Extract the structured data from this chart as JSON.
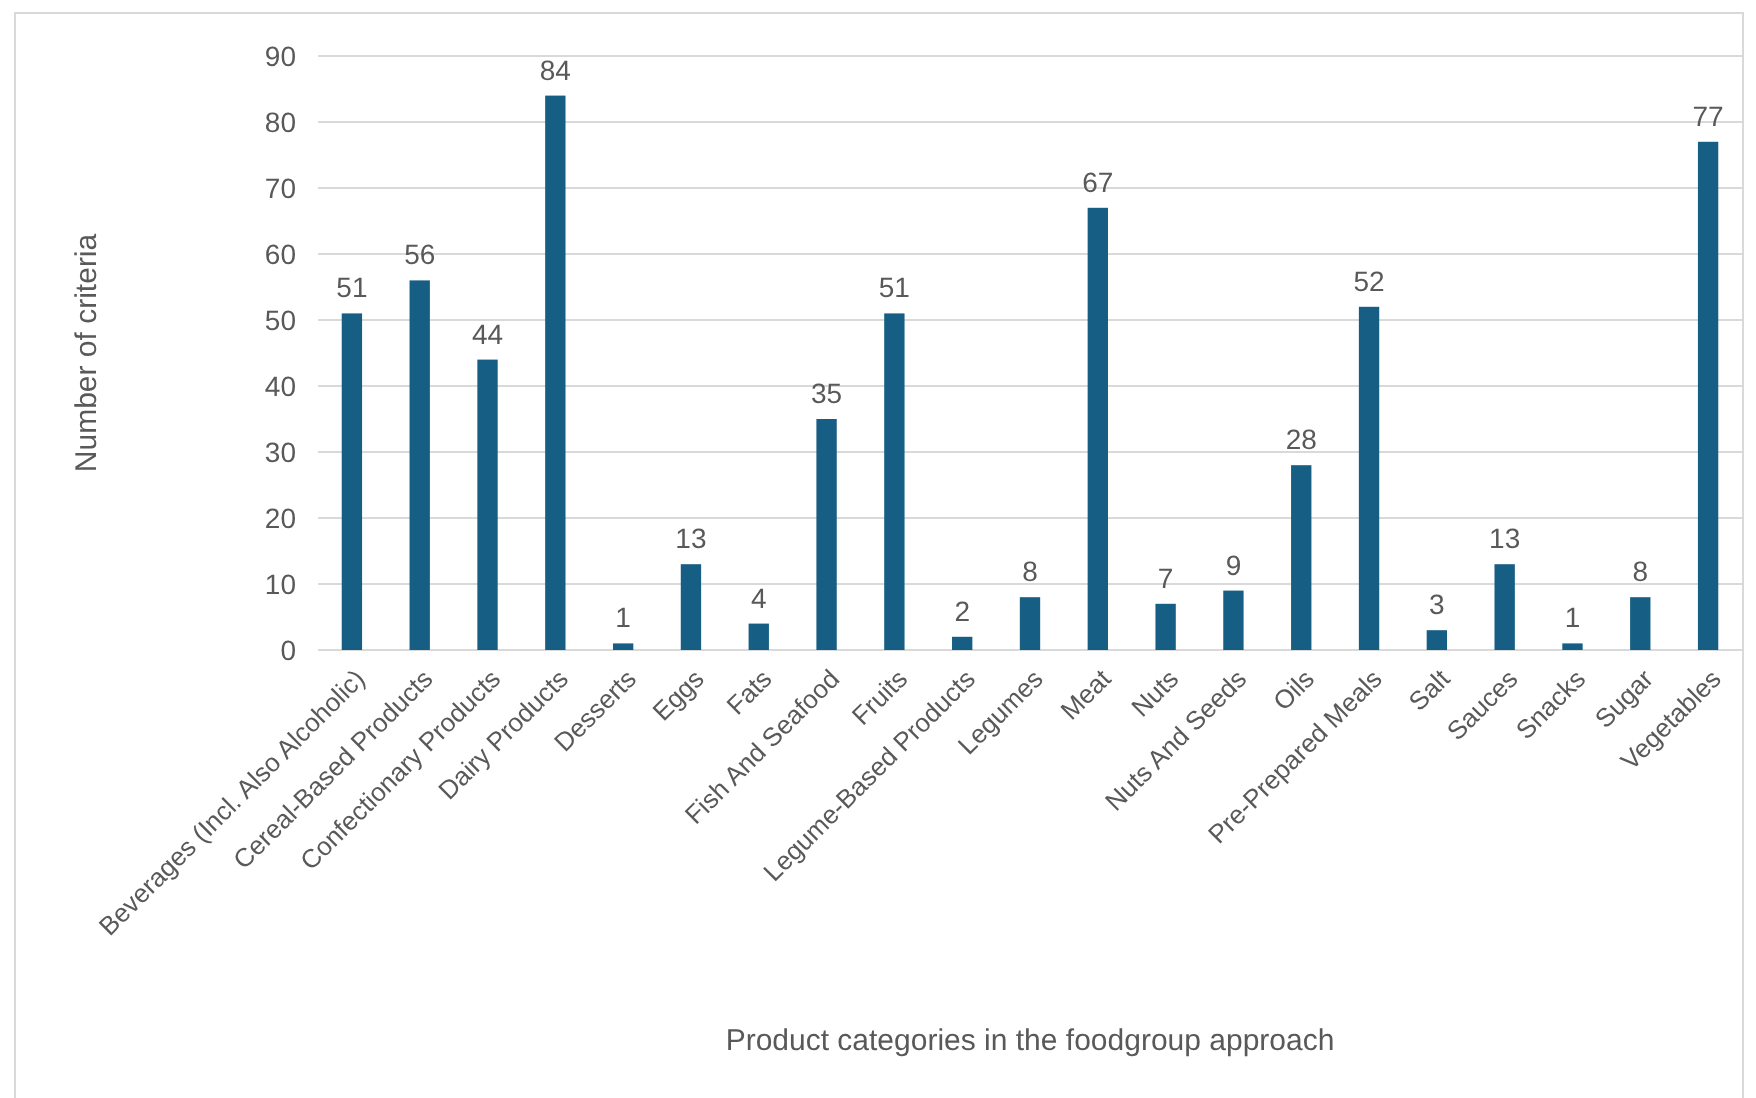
{
  "chart_data": {
    "type": "bar",
    "xlabel": "Product categories in the foodgroup approach",
    "ylabel": "Number of criteria",
    "categories": [
      "Beverages (Incl. Also Alcoholic)",
      "Cereal-Based Products",
      "Confectionary Products",
      "Dairy Products",
      "Desserts",
      "Eggs",
      "Fats",
      "Fish And Seafood",
      "Fruits",
      "Legume-Based Products",
      "Legumes",
      "Meat",
      "Nuts",
      "Nuts And Seeds",
      "Oils",
      "Pre-Prepared Meals",
      "Salt",
      "Sauces",
      "Snacks",
      "Sugar",
      "Vegetables"
    ],
    "values": [
      51,
      56,
      44,
      84,
      1,
      13,
      4,
      35,
      51,
      2,
      8,
      67,
      7,
      9,
      28,
      52,
      3,
      13,
      1,
      8,
      77
    ],
    "color": "#165e83",
    "ylim": [
      0,
      90
    ],
    "yticks": [
      0,
      10,
      20,
      30,
      40,
      50,
      60,
      70,
      80,
      90
    ],
    "grid": "y",
    "data_labels": true
  }
}
